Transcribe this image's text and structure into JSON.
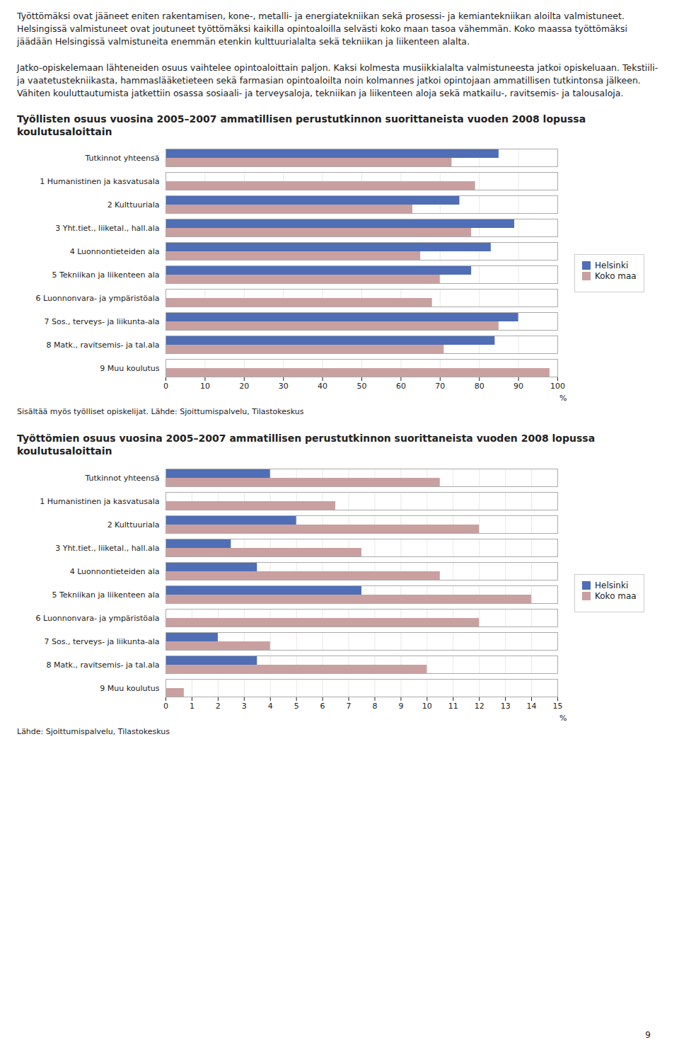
{
  "text": "Työttömäksi ovat jääneet eniten rakentamisen, kone-, metalli- ja energiatekniikan sekä prosessi- ja kemiantekniikan aloilta valmistuneet. Helsingissä valmistuneet ovat joutuneet työttömäksi kaikilla opintoaloilla selvästi koko maan tasoa vähemmän. Koko maassa työttömäksi jäädään Helsingissä valmistuneita enemmän etenkin kulttuurialalta sekä tekniikan ja liikenteen alalta.\n\nJatko-opiskelemaan lähteneiden osuus vaihtelee opintoaloittain paljon. Kaksi kolmesta musiikkialalta valmistuneesta jatkoi opiskeluaan. Tekstiili- ja vaatetustekniikasta, hammaslääketieteen sekä farmasian opintoaloilta noin kolmannes jatkoi opintojaan ammatillisen tutkintonsa jälkeen. Vähiten kouluttautumista jatkettiin osassa sosiaali- ja terveysaloja, tekniikan ja liikenteen aloja sekä matkailu-, ravitsemis- ja talousaloja.",
  "page_number": "9",
  "chart_data": [
    {
      "type": "bar",
      "orientation": "horizontal",
      "title": "Työllisten osuus vuosina 2005–2007 ammatillisen perustutkinnon suorittaneista vuoden 2008 lopussa koulutusaloittain",
      "x_label": "%",
      "categories": [
        "Tutkinnot yhteensä",
        "1 Humanistinen ja kasvatusala",
        "2 Kulttuuriala",
        "3 Yht.tiet., liiketal., hall.ala",
        "4 Luonnontieteiden ala",
        "5 Tekniikan ja liikenteen ala",
        "6 Luonnonvara- ja ympäristöala",
        "7 Sos., terveys- ja liikunta-ala",
        "8 Matk., ravitsemis- ja tal.ala",
        "9 Muu koulutus"
      ],
      "series": [
        {
          "name": "Helsinki",
          "color": "#4F6EB5",
          "values": [
            85,
            null,
            75,
            89,
            83,
            78,
            null,
            90,
            84,
            null
          ]
        },
        {
          "name": "Koko maa",
          "color": "#C9A0A0",
          "values": [
            73,
            79,
            63,
            78,
            65,
            70,
            68,
            85,
            71,
            98
          ]
        }
      ],
      "xlim": [
        0,
        100
      ],
      "xticks": [
        0,
        10,
        20,
        30,
        40,
        50,
        60,
        70,
        80,
        90,
        100
      ],
      "grid": true,
      "legend": "right",
      "note": "Sisältää myös työlliset opiskelijat. Lähde: Sjoittumispalvelu, Tilastokeskus"
    },
    {
      "type": "bar",
      "orientation": "horizontal",
      "title": "Työttömien osuus vuosina 2005–2007 ammatillisen perustutkinnon suorittaneista vuoden 2008 lopussa koulutusaloittain",
      "x_label": "%",
      "categories": [
        "Tutkinnot yhteensä",
        "1 Humanistinen ja kasvatusala",
        "2 Kulttuuriala",
        "3 Yht.tiet., liiketal., hall.ala",
        "4 Luonnontieteiden ala",
        "5 Tekniikan ja liikenteen ala",
        "6 Luonnonvara- ja ympäristöala",
        "7 Sos., terveys- ja liikunta-ala",
        "8 Matk., ravitsemis- ja tal.ala",
        "9 Muu koulutus"
      ],
      "series": [
        {
          "name": "Helsinki",
          "color": "#4F6EB5",
          "values": [
            4,
            null,
            5,
            2.5,
            3.5,
            7.5,
            null,
            2,
            3.5,
            null
          ]
        },
        {
          "name": "Koko maa",
          "color": "#C9A0A0",
          "values": [
            10.5,
            6.5,
            12,
            7.5,
            10.5,
            14,
            12,
            4,
            10,
            0.7
          ]
        }
      ],
      "xlim": [
        0,
        15
      ],
      "xticks": [
        0,
        1,
        2,
        3,
        4,
        5,
        6,
        7,
        8,
        9,
        10,
        11,
        12,
        13,
        14,
        15
      ],
      "grid": true,
      "legend": "right",
      "note": "Lähde: Sjoittumispalvelu, Tilastokeskus"
    }
  ]
}
